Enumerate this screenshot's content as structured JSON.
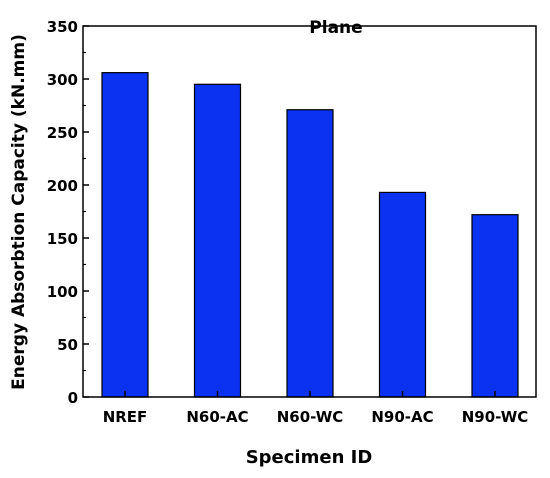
{
  "chart_data": {
    "type": "bar",
    "title": "Plane",
    "xlabel": "Specimen ID",
    "ylabel": "Energy Absorbtion Capacity (kN.mm)",
    "categories": [
      "NREF",
      "N60-AC",
      "N60-WC",
      "N90-AC",
      "N90-WC"
    ],
    "values": [
      306,
      295,
      271,
      193,
      172
    ],
    "ylim": [
      0,
      350
    ],
    "yticks": [
      0,
      50,
      100,
      150,
      200,
      250,
      300,
      350
    ],
    "grid": false,
    "bar_color": "#0a32f0",
    "bar_edge_color": "#000000"
  }
}
